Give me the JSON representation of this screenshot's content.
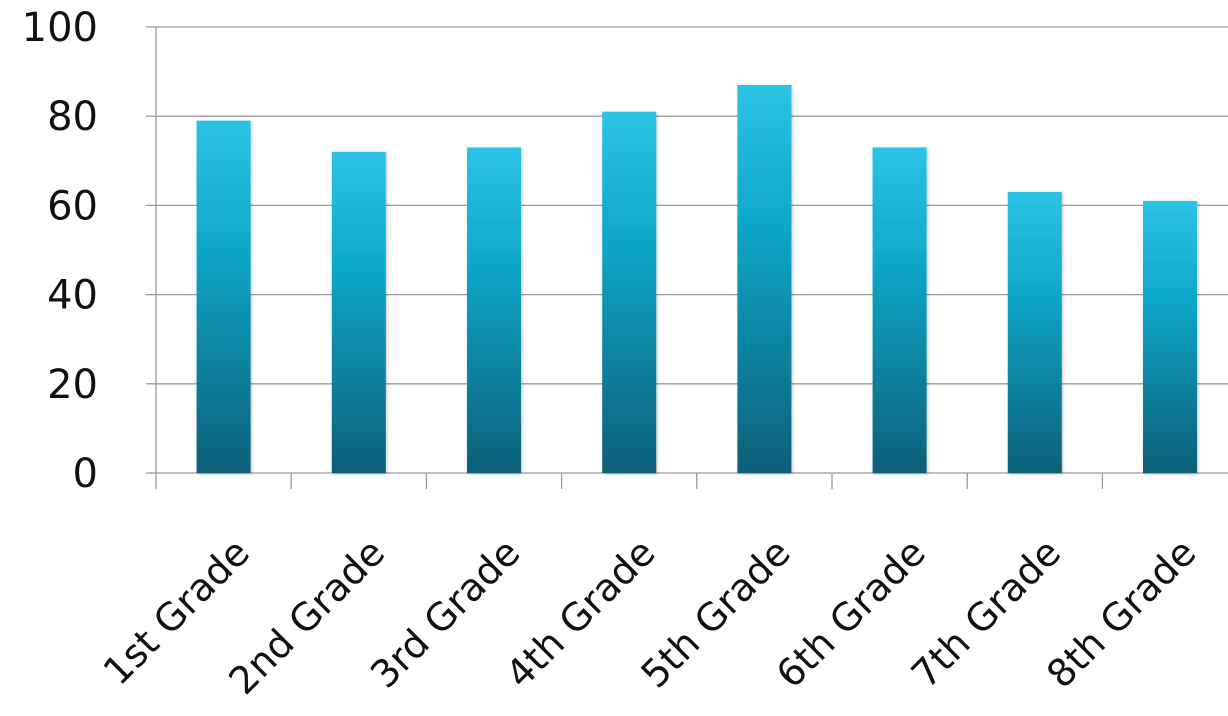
{
  "chart_data": {
    "type": "bar",
    "title": "",
    "xlabel": "",
    "ylabel": "",
    "categories": [
      "1st Grade",
      "2nd Grade",
      "3rd Grade",
      "4th Grade",
      "5th Grade",
      "6th Grade",
      "7th Grade",
      "8th Grade"
    ],
    "values": [
      79,
      72,
      73,
      81,
      87,
      73,
      63,
      61
    ],
    "ylim": [
      0,
      100
    ],
    "yticks": [
      0,
      20,
      40,
      60,
      80,
      100
    ],
    "grid": true,
    "legend": "none",
    "colors": {
      "bar_top": "#2cc3e6",
      "bar_mid": "#0fa8c9",
      "bar_bottom": "#0b5f78",
      "grid": "#9a9a9a"
    }
  }
}
